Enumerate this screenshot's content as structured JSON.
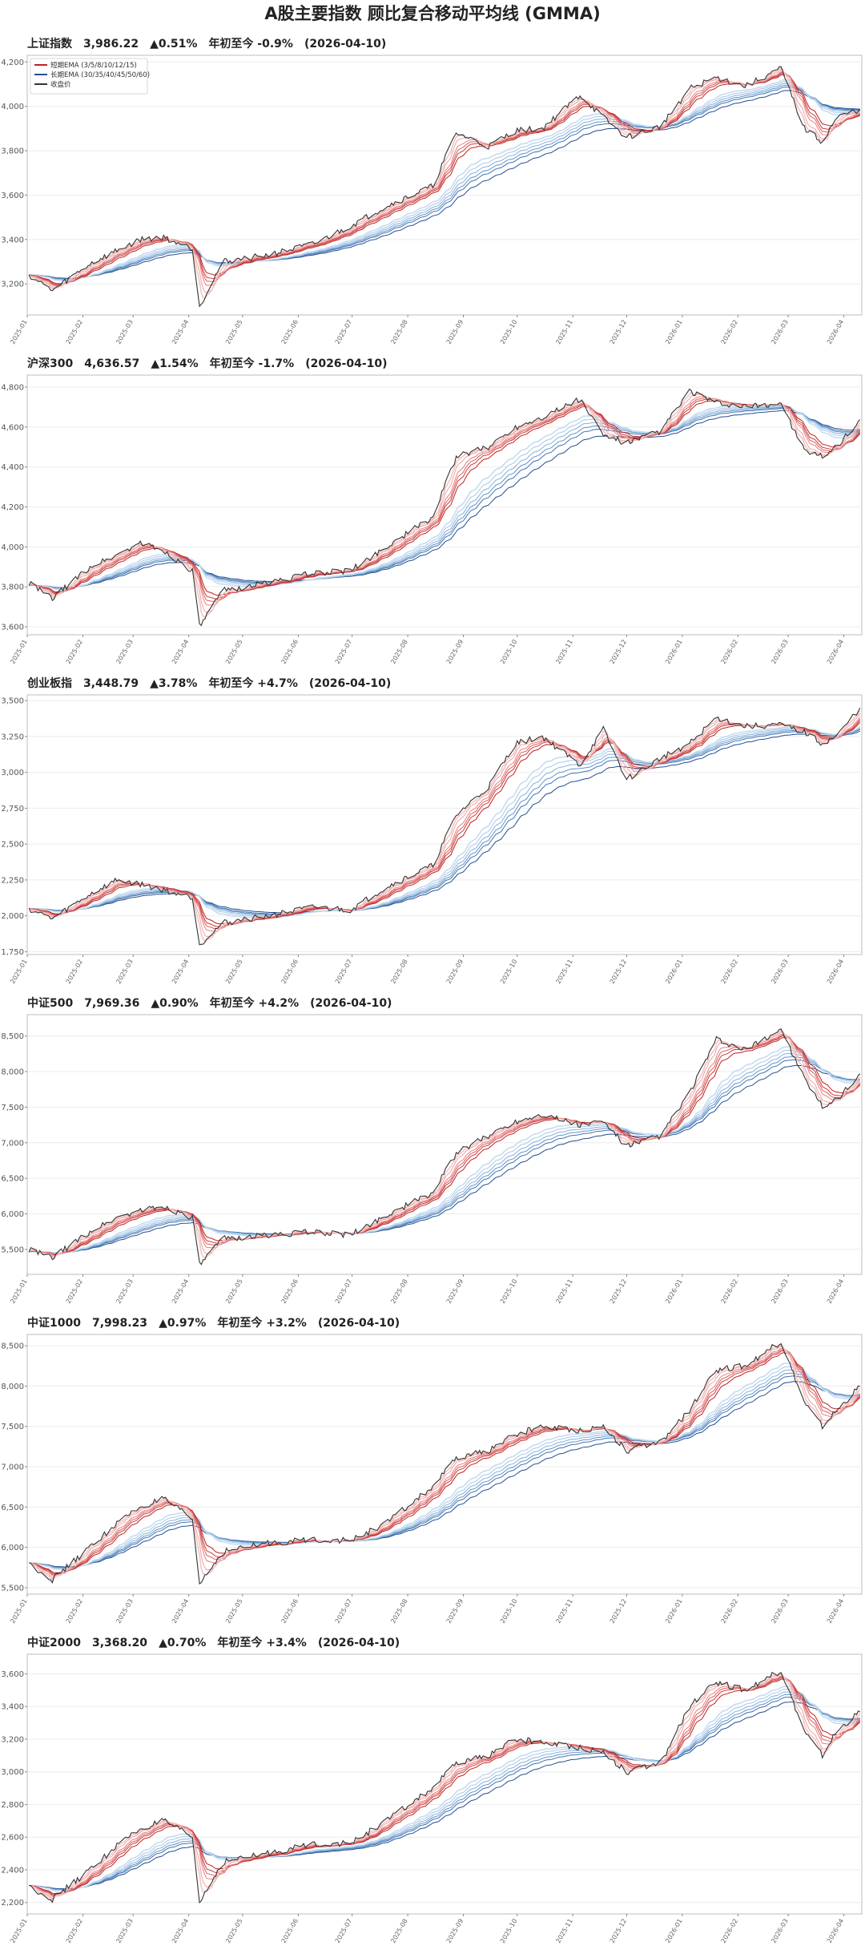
{
  "title": "A股主要指数 顾比复合移动平均线 (GMMA)",
  "legend": {
    "short": "短期EMA (3/5/8/10/12/15)",
    "long": "长期EMA (30/35/40/45/50/60)",
    "close": "收盘价"
  },
  "colors": {
    "close": "#333333",
    "short": [
      "#f6c4c4",
      "#eea3a3",
      "#e48181",
      "#d95f5f",
      "#cc3d3d",
      "#c02020"
    ],
    "long": [
      "#c6dcf0",
      "#a8c8e6",
      "#86b0da",
      "#6393c8",
      "#4074b3",
      "#244f8f"
    ]
  },
  "x_ticks": [
    "2025-01",
    "2025-02",
    "2025-03",
    "2025-04",
    "2025-05",
    "2025-06",
    "2025-07",
    "2025-08",
    "2025-09",
    "2025-10",
    "2025-11",
    "2025-12",
    "2026-01",
    "2026-02",
    "2026-03",
    "2026-04"
  ],
  "chart_data": [
    {
      "type": "line",
      "name": "上证指数",
      "last": "3,986.22",
      "change": "▲0.51%",
      "ytd": "年初至今 -0.9%",
      "date": "(2026-04-10)",
      "ylim": [
        3060,
        4230
      ],
      "yticks": [
        3200,
        3400,
        3600,
        3800,
        4000,
        4200
      ],
      "x": [
        "2025-01-02",
        "2025-01-15",
        "2025-02-05",
        "2025-02-20",
        "2025-03-05",
        "2025-03-18",
        "2025-04-03",
        "2025-04-07",
        "2025-04-20",
        "2025-05-15",
        "2025-06-10",
        "2025-06-30",
        "2025-07-20",
        "2025-08-15",
        "2025-08-28",
        "2025-09-15",
        "2025-09-30",
        "2025-10-15",
        "2025-11-05",
        "2025-11-18",
        "2025-12-01",
        "2025-12-20",
        "2026-01-05",
        "2026-01-20",
        "2026-02-05",
        "2026-02-25",
        "2026-03-10",
        "2026-03-20",
        "2026-03-28",
        "2026-04-10"
      ],
      "close": [
        3240,
        3170,
        3290,
        3350,
        3400,
        3410,
        3360,
        3100,
        3300,
        3330,
        3380,
        3460,
        3550,
        3640,
        3880,
        3820,
        3890,
        3900,
        4050,
        3950,
        3860,
        3910,
        4080,
        4130,
        4090,
        4170,
        3900,
        3840,
        3950,
        3986
      ]
    },
    {
      "type": "line",
      "name": "沪深300",
      "last": "4,636.57",
      "change": "▲1.54%",
      "ytd": "年初至今 -1.7%",
      "date": "(2026-04-10)",
      "ylim": [
        3560,
        4860
      ],
      "yticks": [
        3600,
        3800,
        4000,
        4200,
        4400,
        4600,
        4800
      ],
      "x": [
        "2025-01-02",
        "2025-01-15",
        "2025-02-05",
        "2025-02-20",
        "2025-03-05",
        "2025-03-18",
        "2025-04-03",
        "2025-04-07",
        "2025-04-20",
        "2025-05-15",
        "2025-06-10",
        "2025-06-30",
        "2025-07-20",
        "2025-08-15",
        "2025-08-28",
        "2025-09-15",
        "2025-09-30",
        "2025-10-15",
        "2025-11-05",
        "2025-11-18",
        "2025-12-01",
        "2025-12-20",
        "2026-01-05",
        "2026-01-20",
        "2026-02-05",
        "2026-02-25",
        "2026-03-10",
        "2026-03-20",
        "2026-03-28",
        "2026-04-10"
      ],
      "close": [
        3820,
        3740,
        3900,
        3960,
        4020,
        3980,
        3880,
        3600,
        3780,
        3820,
        3870,
        3880,
        4000,
        4150,
        4450,
        4500,
        4600,
        4650,
        4740,
        4560,
        4520,
        4580,
        4780,
        4720,
        4700,
        4720,
        4480,
        4450,
        4500,
        4637
      ]
    },
    {
      "type": "line",
      "name": "创业板指",
      "last": "3,448.79",
      "change": "▲3.78%",
      "ytd": "年初至今 +4.7%",
      "date": "(2026-04-10)",
      "ylim": [
        1730,
        3540
      ],
      "yticks": [
        1750,
        2000,
        2250,
        2500,
        2750,
        3000,
        3250,
        3500
      ],
      "x": [
        "2025-01-02",
        "2025-01-15",
        "2025-02-05",
        "2025-02-20",
        "2025-03-05",
        "2025-03-18",
        "2025-04-03",
        "2025-04-07",
        "2025-04-20",
        "2025-05-15",
        "2025-06-10",
        "2025-06-30",
        "2025-07-20",
        "2025-08-15",
        "2025-08-28",
        "2025-09-15",
        "2025-09-30",
        "2025-10-15",
        "2025-11-05",
        "2025-11-18",
        "2025-12-01",
        "2025-12-20",
        "2026-01-05",
        "2026-01-20",
        "2026-02-05",
        "2026-02-25",
        "2026-03-10",
        "2026-03-20",
        "2026-03-28",
        "2026-04-10"
      ],
      "close": [
        2050,
        1980,
        2150,
        2250,
        2220,
        2180,
        2130,
        1800,
        1950,
        2000,
        2060,
        2040,
        2200,
        2350,
        2700,
        2900,
        3200,
        3250,
        3050,
        3300,
        2950,
        3100,
        3200,
        3380,
        3320,
        3330,
        3280,
        3200,
        3250,
        3449
      ]
    },
    {
      "type": "line",
      "name": "中证500",
      "last": "7,969.36",
      "change": "▲0.90%",
      "ytd": "年初至今 +4.2%",
      "date": "(2026-04-10)",
      "ylim": [
        5150,
        8800
      ],
      "yticks": [
        5500,
        6000,
        6500,
        7000,
        7500,
        8000,
        8500
      ],
      "x": [
        "2025-01-02",
        "2025-01-15",
        "2025-02-05",
        "2025-02-20",
        "2025-03-05",
        "2025-03-18",
        "2025-04-03",
        "2025-04-07",
        "2025-04-20",
        "2025-05-15",
        "2025-06-10",
        "2025-06-30",
        "2025-07-20",
        "2025-08-15",
        "2025-08-28",
        "2025-09-15",
        "2025-09-30",
        "2025-10-15",
        "2025-11-05",
        "2025-11-18",
        "2025-12-01",
        "2025-12-20",
        "2026-01-05",
        "2026-01-20",
        "2026-02-05",
        "2026-02-25",
        "2026-03-10",
        "2026-03-20",
        "2026-03-28",
        "2026-04-10"
      ],
      "close": [
        5500,
        5380,
        5750,
        5950,
        6050,
        6100,
        5950,
        5280,
        5650,
        5700,
        5750,
        5700,
        5980,
        6300,
        6850,
        7100,
        7300,
        7400,
        7250,
        7300,
        6950,
        7100,
        7700,
        8450,
        8300,
        8600,
        7900,
        7500,
        7600,
        7969
      ]
    },
    {
      "type": "line",
      "name": "中证1000",
      "last": "7,998.23",
      "change": "▲0.97%",
      "ytd": "年初至今 +3.2%",
      "date": "(2026-04-10)",
      "ylim": [
        5420,
        8640
      ],
      "yticks": [
        5500,
        6000,
        6500,
        7000,
        7500,
        8000,
        8500
      ],
      "x": [
        "2025-01-02",
        "2025-01-15",
        "2025-02-05",
        "2025-02-20",
        "2025-03-05",
        "2025-03-18",
        "2025-04-03",
        "2025-04-07",
        "2025-04-20",
        "2025-05-15",
        "2025-06-10",
        "2025-06-30",
        "2025-07-20",
        "2025-08-15",
        "2025-08-28",
        "2025-09-15",
        "2025-09-30",
        "2025-10-15",
        "2025-11-05",
        "2025-11-18",
        "2025-12-01",
        "2025-12-20",
        "2026-01-05",
        "2026-01-20",
        "2026-02-05",
        "2026-02-25",
        "2026-03-10",
        "2026-03-20",
        "2026-03-28",
        "2026-04-10"
      ],
      "close": [
        5800,
        5600,
        6000,
        6300,
        6500,
        6600,
        6350,
        5550,
        5950,
        6050,
        6100,
        6080,
        6300,
        6750,
        7100,
        7200,
        7400,
        7500,
        7450,
        7500,
        7200,
        7300,
        7700,
        8200,
        8250,
        8550,
        7800,
        7500,
        7700,
        7998
      ]
    },
    {
      "type": "line",
      "name": "中证2000",
      "last": "3,368.20",
      "change": "▲0.70%",
      "ytd": "年初至今 +3.4%",
      "date": "(2026-04-10)",
      "ylim": [
        2130,
        3720
      ],
      "yticks": [
        2200,
        2400,
        2600,
        2800,
        3000,
        3200,
        3400,
        3600
      ],
      "x": [
        "2025-01-02",
        "2025-01-15",
        "2025-02-05",
        "2025-02-20",
        "2025-03-05",
        "2025-03-18",
        "2025-04-03",
        "2025-04-07",
        "2025-04-20",
        "2025-05-15",
        "2025-06-10",
        "2025-06-30",
        "2025-07-20",
        "2025-08-15",
        "2025-08-28",
        "2025-09-15",
        "2025-09-30",
        "2025-10-15",
        "2025-11-05",
        "2025-11-18",
        "2025-12-01",
        "2025-12-20",
        "2026-01-05",
        "2026-01-20",
        "2026-02-05",
        "2026-02-25",
        "2026-03-10",
        "2026-03-20",
        "2026-03-28",
        "2026-04-10"
      ],
      "close": [
        2300,
        2220,
        2400,
        2550,
        2650,
        2700,
        2600,
        2200,
        2450,
        2500,
        2560,
        2560,
        2700,
        2900,
        3050,
        3100,
        3200,
        3180,
        3150,
        3120,
        3000,
        3050,
        3400,
        3550,
        3500,
        3620,
        3250,
        3100,
        3250,
        3368
      ]
    }
  ]
}
